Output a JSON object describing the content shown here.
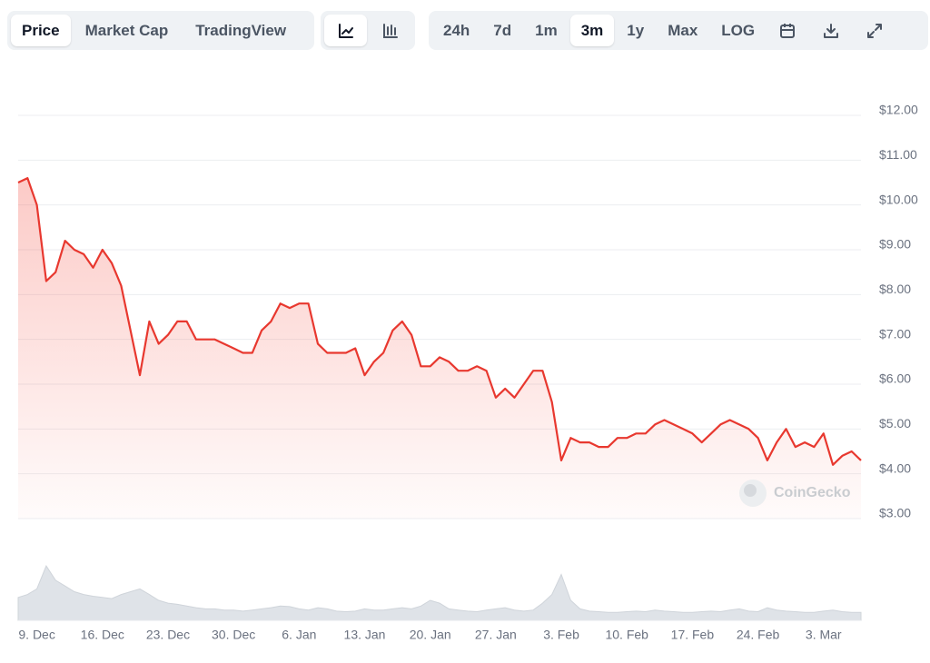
{
  "toolbar": {
    "tabs": [
      "Price",
      "Market Cap",
      "TradingView"
    ],
    "ranges": [
      "24h",
      "7d",
      "1m",
      "3m",
      "1y",
      "Max",
      "LOG"
    ]
  },
  "watermark": "CoinGecko",
  "chart_data": [
    {
      "type": "line",
      "color": "#e8382f",
      "grid": true,
      "categories": [
        null,
        null,
        "9. Dec",
        null,
        null,
        null,
        null,
        null,
        null,
        "16. Dec",
        null,
        null,
        null,
        null,
        null,
        null,
        "23. Dec",
        null,
        null,
        null,
        null,
        null,
        null,
        "30. Dec",
        null,
        null,
        null,
        null,
        null,
        null,
        "6. Jan",
        null,
        null,
        null,
        null,
        null,
        null,
        "13. Jan",
        null,
        null,
        null,
        null,
        null,
        null,
        "20. Jan",
        null,
        null,
        null,
        null,
        null,
        null,
        "27. Jan",
        null,
        null,
        null,
        null,
        null,
        null,
        "3. Feb",
        null,
        null,
        null,
        null,
        null,
        null,
        "10. Feb",
        null,
        null,
        null,
        null,
        null,
        null,
        "17. Feb",
        null,
        null,
        null,
        null,
        null,
        null,
        "24. Feb",
        null,
        null,
        null,
        null,
        null,
        null,
        "3. Mar",
        null,
        null,
        null,
        null
      ],
      "values": [
        10.5,
        10.6,
        10.0,
        8.3,
        8.5,
        9.2,
        9.0,
        8.9,
        8.6,
        9.0,
        8.7,
        8.2,
        7.2,
        6.2,
        7.4,
        6.9,
        7.1,
        7.4,
        7.4,
        7.0,
        7.0,
        7.0,
        6.9,
        6.8,
        6.7,
        6.7,
        7.2,
        7.4,
        7.8,
        7.7,
        7.8,
        7.8,
        6.9,
        6.7,
        6.7,
        6.7,
        6.8,
        6.2,
        6.5,
        6.7,
        7.2,
        7.4,
        7.1,
        6.4,
        6.4,
        6.6,
        6.5,
        6.3,
        6.3,
        6.4,
        6.3,
        5.7,
        5.9,
        5.7,
        6.0,
        6.3,
        6.3,
        5.6,
        4.3,
        4.8,
        4.7,
        4.7,
        4.6,
        4.6,
        4.8,
        4.8,
        4.9,
        4.9,
        5.1,
        5.2,
        5.1,
        5.0,
        4.9,
        4.7,
        4.9,
        5.1,
        5.2,
        5.1,
        5.0,
        4.8,
        4.3,
        4.7,
        5.0,
        4.6,
        4.7,
        4.6,
        4.9,
        4.2,
        4.4,
        4.5,
        4.3
      ],
      "ylim": [
        3,
        12
      ],
      "yticks": [
        {
          "value": 3,
          "label": "$3.00"
        },
        {
          "value": 4,
          "label": "$4.00"
        },
        {
          "value": 5,
          "label": "$5.00"
        },
        {
          "value": 6,
          "label": "$6.00"
        },
        {
          "value": 7,
          "label": "$7.00"
        },
        {
          "value": 8,
          "label": "$8.00"
        },
        {
          "value": 9,
          "label": "$9.00"
        },
        {
          "value": 10,
          "label": "$10.00"
        },
        {
          "value": 11,
          "label": "$11.00"
        },
        {
          "value": 12,
          "label": "$12.00"
        }
      ]
    },
    {
      "type": "area",
      "color": "#dfe3e8",
      "values": [
        40,
        45,
        55,
        95,
        70,
        60,
        50,
        45,
        42,
        40,
        38,
        45,
        50,
        55,
        45,
        35,
        30,
        28,
        25,
        22,
        20,
        20,
        18,
        18,
        16,
        18,
        20,
        22,
        25,
        24,
        20,
        18,
        22,
        20,
        16,
        15,
        16,
        20,
        18,
        18,
        20,
        22,
        20,
        25,
        35,
        30,
        20,
        18,
        16,
        15,
        18,
        20,
        22,
        18,
        16,
        18,
        30,
        45,
        80,
        35,
        20,
        16,
        15,
        14,
        14,
        15,
        16,
        15,
        18,
        16,
        15,
        14,
        14,
        15,
        16,
        15,
        18,
        20,
        16,
        15,
        22,
        18,
        16,
        15,
        14,
        14,
        16,
        18,
        15,
        14,
        14
      ],
      "ylim": [
        0,
        100
      ]
    }
  ]
}
